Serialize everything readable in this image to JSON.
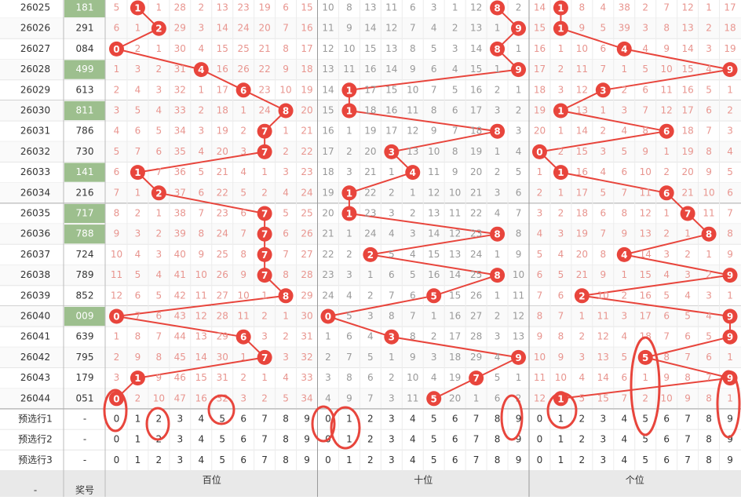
{
  "rows": [
    {
      "issue": "26025",
      "number": "181",
      "highlight": true,
      "hundreds": [
        5,
        1,
        1,
        28,
        2,
        13,
        23,
        19,
        6,
        15
      ],
      "tens": [
        10,
        8,
        13,
        11,
        6,
        3,
        1,
        12,
        8,
        2
      ],
      "units": [
        14,
        1,
        8,
        4,
        38,
        2,
        7,
        12,
        1,
        17
      ]
    },
    {
      "issue": "26026",
      "number": "291",
      "highlight": false,
      "hundreds": [
        6,
        1,
        2,
        29,
        3,
        14,
        24,
        20,
        7,
        16
      ],
      "tens": [
        11,
        9,
        14,
        12,
        7,
        4,
        2,
        13,
        1,
        9
      ],
      "units": [
        15,
        1,
        9,
        5,
        39,
        3,
        8,
        13,
        2,
        18
      ]
    },
    {
      "issue": "26027",
      "number": "084",
      "highlight": false,
      "hundreds": [
        0,
        2,
        1,
        30,
        4,
        15,
        25,
        21,
        8,
        17
      ],
      "tens": [
        12,
        10,
        15,
        13,
        8,
        5,
        3,
        14,
        8,
        1
      ],
      "units": [
        16,
        1,
        10,
        6,
        4,
        4,
        9,
        14,
        3,
        19
      ]
    },
    {
      "issue": "26028",
      "number": "499",
      "highlight": true,
      "hundreds": [
        1,
        3,
        2,
        31,
        4,
        16,
        26,
        22,
        9,
        18
      ],
      "tens": [
        13,
        11,
        16,
        14,
        9,
        6,
        4,
        15,
        1,
        9
      ],
      "units": [
        17,
        2,
        11,
        7,
        1,
        5,
        10,
        15,
        4,
        9
      ]
    },
    {
      "issue": "26029",
      "number": "613",
      "highlight": false,
      "hundreds": [
        2,
        4,
        3,
        32,
        1,
        17,
        6,
        23,
        10,
        19
      ],
      "tens": [
        14,
        1,
        17,
        15,
        10,
        7,
        5,
        16,
        2,
        1
      ],
      "units": [
        18,
        3,
        12,
        3,
        2,
        6,
        11,
        16,
        5,
        1
      ]
    },
    {
      "issue": "26030",
      "number": "811",
      "highlight": true,
      "hundreds": [
        3,
        5,
        4,
        33,
        2,
        18,
        1,
        24,
        8,
        20
      ],
      "tens": [
        15,
        1,
        18,
        16,
        11,
        8,
        6,
        17,
        3,
        2
      ],
      "units": [
        19,
        1,
        13,
        1,
        3,
        7,
        12,
        17,
        6,
        2
      ]
    },
    {
      "issue": "26031",
      "number": "786",
      "highlight": false,
      "hundreds": [
        4,
        6,
        5,
        34,
        3,
        19,
        2,
        7,
        1,
        21
      ],
      "tens": [
        16,
        1,
        19,
        17,
        12,
        9,
        7,
        18,
        8,
        3
      ],
      "units": [
        20,
        1,
        14,
        2,
        4,
        8,
        6,
        18,
        7,
        3
      ]
    },
    {
      "issue": "26032",
      "number": "730",
      "highlight": false,
      "hundreds": [
        5,
        7,
        6,
        35,
        4,
        20,
        3,
        7,
        2,
        22
      ],
      "tens": [
        17,
        2,
        20,
        3,
        13,
        10,
        8,
        19,
        1,
        4
      ],
      "units": [
        0,
        2,
        15,
        3,
        5,
        9,
        1,
        19,
        8,
        4
      ]
    },
    {
      "issue": "26033",
      "number": "141",
      "highlight": true,
      "hundreds": [
        6,
        1,
        7,
        36,
        5,
        21,
        4,
        1,
        3,
        23
      ],
      "tens": [
        18,
        3,
        21,
        1,
        4,
        11,
        9,
        20,
        2,
        5
      ],
      "units": [
        1,
        1,
        16,
        4,
        6,
        10,
        2,
        20,
        9,
        5
      ]
    },
    {
      "issue": "26034",
      "number": "216",
      "highlight": false,
      "hundreds": [
        7,
        1,
        2,
        37,
        6,
        22,
        5,
        2,
        4,
        24
      ],
      "tens": [
        19,
        1,
        22,
        2,
        1,
        12,
        10,
        21,
        3,
        6
      ],
      "units": [
        2,
        1,
        17,
        5,
        7,
        11,
        6,
        21,
        10,
        6
      ]
    },
    {
      "issue": "26035",
      "number": "717",
      "highlight": true,
      "hundreds": [
        8,
        2,
        1,
        38,
        7,
        23,
        6,
        7,
        5,
        25
      ],
      "tens": [
        20,
        1,
        23,
        3,
        2,
        13,
        11,
        22,
        4,
        7
      ],
      "units": [
        3,
        2,
        18,
        6,
        8,
        12,
        1,
        7,
        11,
        7
      ]
    },
    {
      "issue": "26036",
      "number": "788",
      "highlight": true,
      "hundreds": [
        9,
        3,
        2,
        39,
        8,
        24,
        7,
        7,
        6,
        26
      ],
      "tens": [
        21,
        1,
        24,
        4,
        3,
        14,
        12,
        23,
        8,
        8
      ],
      "units": [
        4,
        3,
        19,
        7,
        9,
        13,
        2,
        1,
        8,
        8
      ]
    },
    {
      "issue": "26037",
      "number": "724",
      "highlight": false,
      "hundreds": [
        10,
        4,
        3,
        40,
        9,
        25,
        8,
        7,
        7,
        27
      ],
      "tens": [
        22,
        2,
        2,
        5,
        4,
        15,
        13,
        24,
        1,
        9
      ],
      "units": [
        5,
        4,
        20,
        8,
        4,
        14,
        3,
        2,
        1,
        9
      ]
    },
    {
      "issue": "26038",
      "number": "789",
      "highlight": false,
      "hundreds": [
        11,
        5,
        4,
        41,
        10,
        26,
        9,
        7,
        8,
        28
      ],
      "tens": [
        23,
        3,
        1,
        6,
        5,
        16,
        14,
        25,
        8,
        10
      ],
      "units": [
        6,
        5,
        21,
        9,
        1,
        15,
        4,
        3,
        2,
        9
      ]
    },
    {
      "issue": "26039",
      "number": "852",
      "highlight": false,
      "hundreds": [
        12,
        6,
        5,
        42,
        11,
        27,
        10,
        1,
        8,
        29
      ],
      "tens": [
        24,
        4,
        2,
        7,
        6,
        5,
        15,
        26,
        1,
        11
      ],
      "units": [
        7,
        6,
        2,
        10,
        2,
        16,
        5,
        4,
        3,
        1
      ]
    },
    {
      "issue": "26040",
      "number": "009",
      "highlight": true,
      "hundreds": [
        0,
        7,
        6,
        43,
        12,
        28,
        11,
        2,
        1,
        30
      ],
      "tens": [
        0,
        5,
        3,
        8,
        7,
        1,
        16,
        27,
        2,
        12
      ],
      "units": [
        8,
        7,
        1,
        11,
        3,
        17,
        6,
        5,
        4,
        9
      ]
    },
    {
      "issue": "26041",
      "number": "639",
      "highlight": false,
      "hundreds": [
        1,
        8,
        7,
        44,
        13,
        29,
        6,
        3,
        2,
        31
      ],
      "tens": [
        1,
        6,
        4,
        3,
        8,
        2,
        17,
        28,
        3,
        13
      ],
      "units": [
        9,
        8,
        2,
        12,
        4,
        18,
        7,
        6,
        5,
        9
      ]
    },
    {
      "issue": "26042",
      "number": "795",
      "highlight": false,
      "hundreds": [
        2,
        9,
        8,
        45,
        14,
        30,
        1,
        7,
        3,
        32
      ],
      "tens": [
        2,
        7,
        5,
        1,
        9,
        3,
        18,
        29,
        4,
        9
      ],
      "units": [
        10,
        9,
        3,
        13,
        5,
        5,
        8,
        7,
        6,
        1
      ]
    },
    {
      "issue": "26043",
      "number": "179",
      "highlight": false,
      "hundreds": [
        3,
        1,
        9,
        46,
        15,
        31,
        2,
        1,
        4,
        33
      ],
      "tens": [
        3,
        8,
        6,
        2,
        10,
        4,
        19,
        7,
        5,
        1
      ],
      "units": [
        11,
        10,
        4,
        14,
        6,
        1,
        9,
        8,
        7,
        9
      ]
    },
    {
      "issue": "26044",
      "number": "051",
      "highlight": false,
      "hundreds": [
        0,
        2,
        10,
        47,
        16,
        32,
        3,
        2,
        5,
        34
      ],
      "tens": [
        4,
        9,
        7,
        3,
        11,
        5,
        20,
        1,
        6,
        2
      ],
      "units": [
        12,
        1,
        5,
        15,
        7,
        2,
        10,
        9,
        8,
        1
      ]
    }
  ],
  "preselect": [
    {
      "label": "预选行1",
      "number": "-",
      "digits": [
        [
          0,
          1,
          2,
          3,
          4,
          5,
          6,
          7,
          8,
          9
        ],
        [
          0,
          1,
          2,
          3,
          4,
          5,
          6,
          7,
          8,
          9
        ],
        [
          0,
          1,
          2,
          3,
          4,
          5,
          6,
          7,
          8,
          9
        ]
      ]
    },
    {
      "label": "预选行2",
      "number": "-",
      "digits": [
        [
          0,
          1,
          2,
          3,
          4,
          5,
          6,
          7,
          8,
          9
        ],
        [
          0,
          1,
          2,
          3,
          4,
          5,
          6,
          7,
          8,
          9
        ],
        [
          0,
          1,
          2,
          3,
          4,
          5,
          6,
          7,
          8,
          9
        ]
      ]
    },
    {
      "label": "预选行3",
      "number": "-",
      "digits": [
        [
          0,
          1,
          2,
          3,
          4,
          5,
          6,
          7,
          8,
          9
        ],
        [
          0,
          1,
          2,
          3,
          4,
          5,
          6,
          7,
          8,
          9
        ],
        [
          0,
          1,
          2,
          3,
          4,
          5,
          6,
          7,
          8,
          9
        ]
      ]
    }
  ],
  "footer": {
    "issue": "-",
    "number": "奖号",
    "groups": [
      "百位",
      "十位",
      "个位"
    ]
  }
}
